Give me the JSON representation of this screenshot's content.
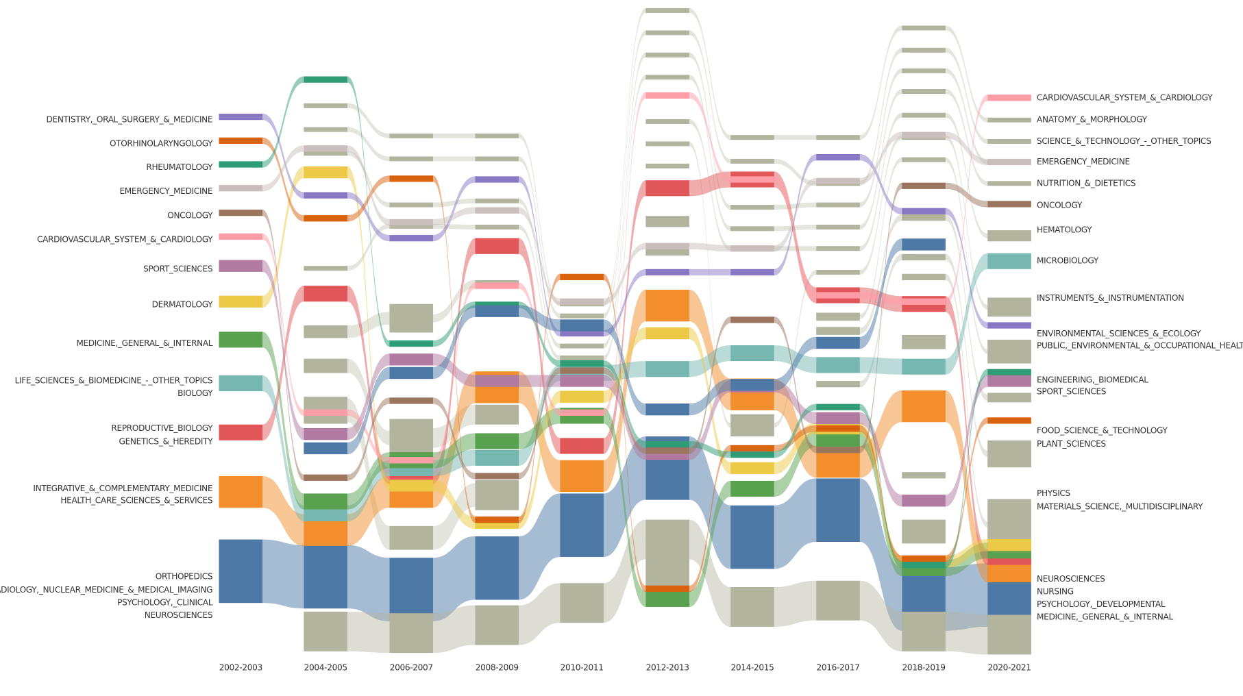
{
  "columns": [
    "2002-2003",
    "2004-2005",
    "2006-2007",
    "2008-2009",
    "2010-2011",
    "2012-2013",
    "2014-2015",
    "2016-2017",
    "2018-2019",
    "2020-2021"
  ],
  "left_labels": [
    "DENTISTRY,_ORAL_SURGERY_&_MEDICINE",
    "OTORHINOLARYNGOLOGY",
    "RHEUMATOLOGY",
    "EMERGENCY_MEDICINE",
    "ONCOLOGY",
    "CARDIOVASCULAR_SYSTEM_&_CARDIOLOGY",
    "SPORT_SCIENCES",
    "DERMATOLOGY",
    "MEDICINE,_GENERAL_&_INTERNAL",
    "LIFE_SCIENCES_&_BIOMEDICINE_-_OTHER_TOPICS",
    "BIOLOGY",
    "REPRODUCTIVE_BIOLOGY",
    "GENETICS_&_HEREDITY",
    "INTEGRATIVE_&_COMPLEMENTARY_MEDICINE",
    "HEALTH_CARE_SCIENCES_&_SERVICES",
    "ORTHOPEDICS",
    "RADIOLOGY,_NUCLEAR_MEDICINE_&_MEDICAL_IMAGING",
    "PSYCHOLOGY,_CLINICAL",
    "NEUROSCIENCES"
  ],
  "right_labels": [
    "CARDIOVASCULAR_SYSTEM_&_CARDIOLOGY",
    "ANATOMY_&_MORPHOLOGY",
    "SCIENCE_&_TECHNOLOGY_-_OTHER_TOPICS",
    "EMERGENCY_MEDICINE",
    "NUTRITION_&_DIETETICS",
    "ONCOLOGY",
    "HEMATOLOGY",
    "MICROBIOLOGY",
    "INSTRUMENTS_&_INSTRUMENTATION",
    "ENVIRONMENTAL_SCIENCES_&_ECOLOGY",
    "PUBLIC,_ENVIRONMENTAL_&_OCCUPATIONAL_HEALTH",
    "ENGINEERING,_BIOMEDICAL",
    "SPORT_SCIENCES",
    "FOOD_SCIENCE_&_TECHNOLOGY",
    "PLANT_SCIENCES",
    "PHYSICS",
    "MATERIALS_SCIENCE,_MULTIDISCIPLINARY",
    "NEUROSCIENCES",
    "NURSING",
    "PSYCHOLOGY,_DEVELOPMENTAL",
    "MEDICINE,_GENERAL_&_INTERNAL"
  ]
}
